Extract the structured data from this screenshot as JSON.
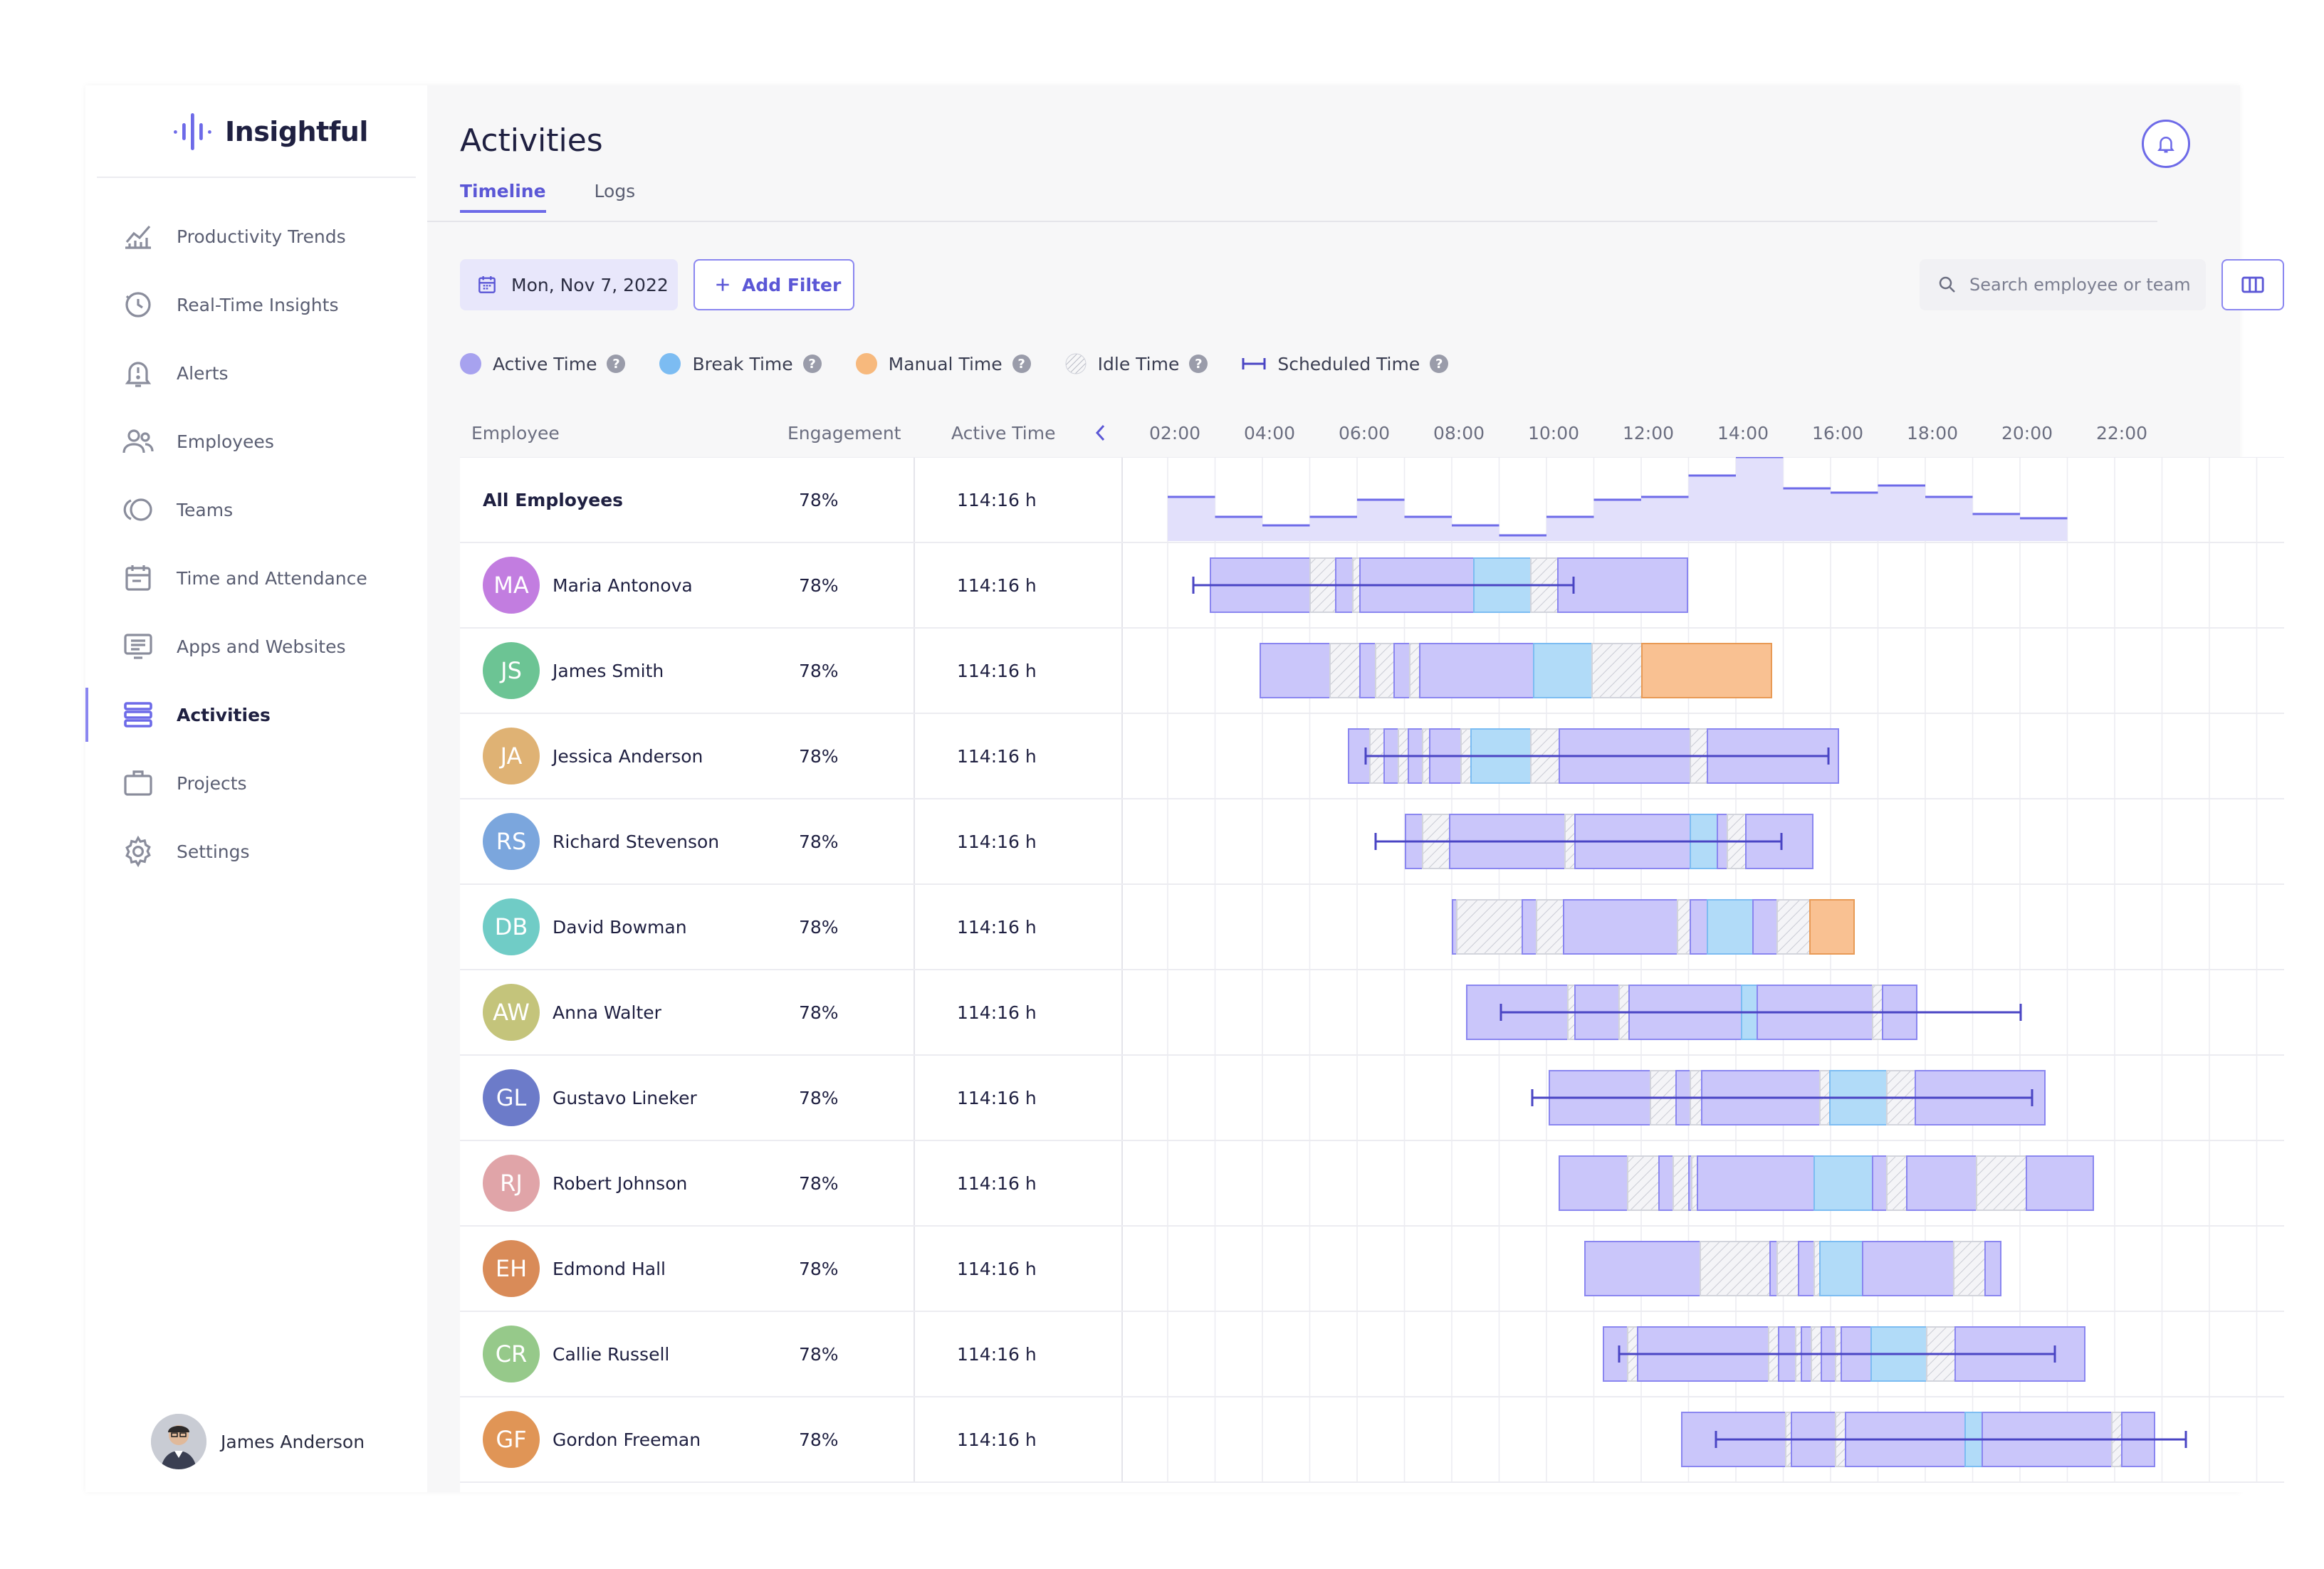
{
  "brand": {
    "name": "Insightful"
  },
  "sidebar": {
    "items": [
      {
        "label": "Productivity Trends",
        "icon": "chart-trend-icon"
      },
      {
        "label": "Real-Time Insights",
        "icon": "clock-refresh-icon"
      },
      {
        "label": "Alerts",
        "icon": "alert-bell-icon"
      },
      {
        "label": "Employees",
        "icon": "users-icon"
      },
      {
        "label": "Teams",
        "icon": "teams-circles-icon"
      },
      {
        "label": "Time and Attendance",
        "icon": "calendar-icon"
      },
      {
        "label": "Apps and Websites",
        "icon": "monitor-list-icon"
      },
      {
        "label": "Activities",
        "icon": "activities-list-icon",
        "active": true
      },
      {
        "label": "Projects",
        "icon": "briefcase-icon"
      },
      {
        "label": "Settings",
        "icon": "gear-icon"
      }
    ],
    "user": {
      "name": "James Anderson"
    }
  },
  "header": {
    "title": "Activities",
    "tabs": [
      {
        "label": "Timeline",
        "active": true
      },
      {
        "label": "Logs",
        "active": false
      }
    ]
  },
  "toolbar": {
    "date": "Mon, Nov 7, 2022",
    "add_filter": "Add Filter",
    "search_placeholder": "Search employee or team"
  },
  "legend": [
    {
      "label": "Active Time",
      "color": "#a7a2ef"
    },
    {
      "label": "Break Time",
      "color": "#7cbcf2"
    },
    {
      "label": "Manual Time",
      "color": "#f7b97d"
    },
    {
      "label": "Idle Time",
      "color": "hatched"
    },
    {
      "label": "Scheduled Time",
      "color": "#4a45c4"
    }
  ],
  "table": {
    "columns": {
      "employee": "Employee",
      "engagement": "Engagement",
      "active_time": "Active Time"
    },
    "hours": [
      "02:00",
      "04:00",
      "06:00",
      "08:00",
      "10:00",
      "12:00",
      "14:00",
      "16:00",
      "18:00",
      "20:00",
      "22:00"
    ],
    "rows": [
      {
        "name": "All Employees",
        "engagement": "78%",
        "active_time": "114:16 h"
      },
      {
        "name": "Maria Antonova",
        "initials": "MA",
        "color": "#c27de0",
        "engagement": "78%",
        "active_time": "114:16 h"
      },
      {
        "name": "James Smith",
        "initials": "JS",
        "color": "#6cc494",
        "engagement": "78%",
        "active_time": "114:16 h"
      },
      {
        "name": "Jessica Anderson",
        "initials": "JA",
        "color": "#dfb274",
        "engagement": "78%",
        "active_time": "114:16 h"
      },
      {
        "name": "Richard Stevenson",
        "initials": "RS",
        "color": "#7ba6dd",
        "engagement": "78%",
        "active_time": "114:16 h"
      },
      {
        "name": "David Bowman",
        "initials": "DB",
        "color": "#70ccc6",
        "engagement": "78%",
        "active_time": "114:16 h"
      },
      {
        "name": "Anna Walter",
        "initials": "AW",
        "color": "#c4c47b",
        "engagement": "78%",
        "active_time": "114:16 h"
      },
      {
        "name": "Gustavo Lineker",
        "initials": "GL",
        "color": "#6c7bc9",
        "engagement": "78%",
        "active_time": "114:16 h"
      },
      {
        "name": "Robert Johnson",
        "initials": "RJ",
        "color": "#e0a4a8",
        "engagement": "78%",
        "active_time": "114:16 h"
      },
      {
        "name": "Edmond Hall",
        "initials": "EH",
        "color": "#d98b58",
        "engagement": "78%",
        "active_time": "114:16 h"
      },
      {
        "name": "Callie Russell",
        "initials": "CR",
        "color": "#96c98a",
        "engagement": "78%",
        "active_time": "114:16 h"
      },
      {
        "name": "Gordon Freeman",
        "initials": "GF",
        "color": "#e09556",
        "engagement": "78%",
        "active_time": "114:16 h"
      }
    ]
  }
}
